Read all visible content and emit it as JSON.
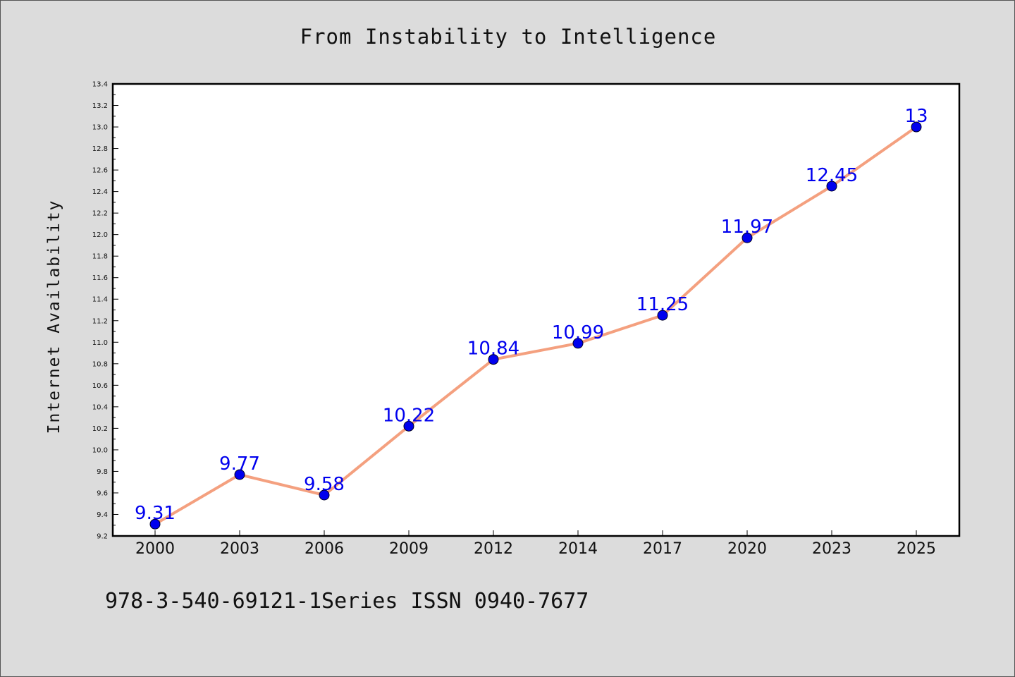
{
  "chart_data": {
    "type": "line",
    "title": "From Instability to Intelligence",
    "ylabel": "Internet Availability",
    "xlabel": "",
    "categories": [
      "2000",
      "2003",
      "2006",
      "2009",
      "2012",
      "2014",
      "2017",
      "2020",
      "2023",
      "2025"
    ],
    "series": [
      {
        "values": [
          9.31,
          9.77,
          9.58,
          10.22,
          10.84,
          10.99,
          11.25,
          11.97,
          12.45,
          13
        ],
        "line_color": "#f4a07f",
        "marker_color": "#0000ee",
        "label_color": "#0000ee"
      }
    ],
    "ylim": [
      9.2,
      13.4
    ],
    "yticks": [
      "9.2",
      "9.4",
      "9.6",
      "9.8",
      "10.0",
      "10.2",
      "10.4",
      "10.6",
      "10.8",
      "11.0",
      "11.2",
      "11.4",
      "11.6",
      "11.8",
      "12.0",
      "12.2",
      "12.4",
      "12.6",
      "12.8",
      "13.0",
      "13.2",
      "13.4"
    ],
    "grid": false,
    "data_labels": true
  },
  "footnote": "978-3-540-69121-1Series ISSN 0940-7677",
  "colors": {
    "background": "#dcdcdc",
    "plot_background": "#ffffff",
    "axis": "#000000"
  }
}
